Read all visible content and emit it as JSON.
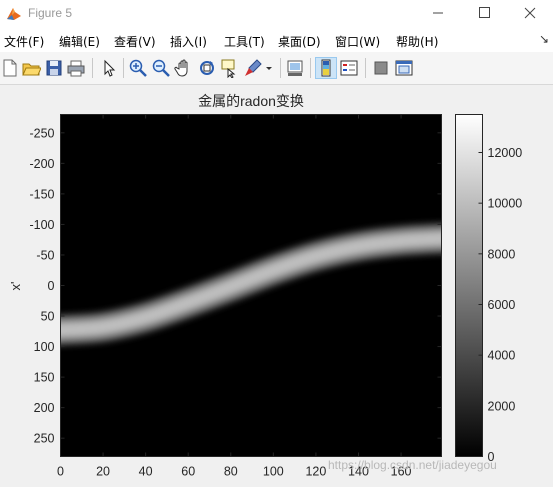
{
  "window": {
    "title": "Figure 5"
  },
  "menu": {
    "items": [
      "文件(F)",
      "编辑(E)",
      "查看(V)",
      "插入(I)",
      "工具(T)",
      "桌面(D)",
      "窗口(W)",
      "帮助(H)"
    ]
  },
  "toolbar": {
    "icons": [
      "new-figure-icon",
      "open-file-icon",
      "save-icon",
      "print-icon",
      "edit-plot-arrow-icon",
      "zoom-in-icon",
      "zoom-out-icon",
      "pan-hand-icon",
      "rotate-3d-icon",
      "data-cursor-icon",
      "brush-icon",
      "brush-dropdown-icon",
      "link-plot-icon",
      "insert-colorbar-icon",
      "insert-legend-icon",
      "hide-plot-tools-icon",
      "show-plot-tools-icon"
    ]
  },
  "chart_data": {
    "type": "heatmap",
    "title": "金属的radon变换",
    "xlabel": "",
    "ylabel": "x'",
    "x_range": [
      0,
      179
    ],
    "y_range": [
      -280,
      280
    ],
    "y_reversed": true,
    "x_ticks": [
      "0",
      "20",
      "40",
      "60",
      "80",
      "100",
      "120",
      "140",
      "160"
    ],
    "y_ticks": [
      "-250",
      "-200",
      "-150",
      "-100",
      "-50",
      "0",
      "50",
      "100",
      "150",
      "200",
      "250"
    ],
    "colorbar_ticks": [
      "0",
      "2000",
      "4000",
      "6000",
      "8000",
      "10000",
      "12000"
    ],
    "colorbar_range": [
      0,
      13500
    ],
    "colormap": "gray",
    "band": {
      "description_values": [
        {
          "theta": 0,
          "x_center": 73,
          "peak": 10500
        },
        {
          "theta": 20,
          "x_center": 68,
          "peak": 11500
        },
        {
          "theta": 40,
          "x_center": 52,
          "peak": 10500
        },
        {
          "theta": 60,
          "x_center": 28,
          "peak": 11000
        },
        {
          "theta": 80,
          "x_center": 2,
          "peak": 9500
        },
        {
          "theta": 100,
          "x_center": -25,
          "peak": 8500
        },
        {
          "theta": 120,
          "x_center": -48,
          "peak": 9500
        },
        {
          "theta": 140,
          "x_center": -64,
          "peak": 11500
        },
        {
          "theta": 160,
          "x_center": -73,
          "peak": 12000
        },
        {
          "theta": 179,
          "x_center": -77,
          "peak": 12500
        }
      ],
      "half_width": 22
    }
  },
  "watermark": "https://blog.csdn.net/jiadeyegou"
}
